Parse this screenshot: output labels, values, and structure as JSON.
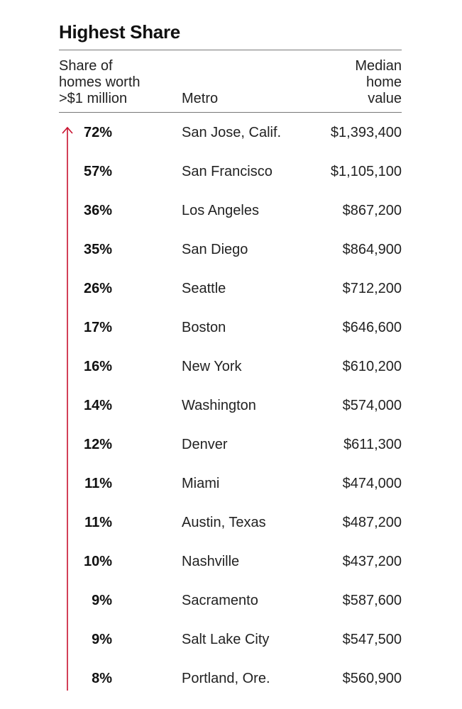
{
  "chart_data": {
    "type": "table",
    "title": "Highest Share",
    "columns": [
      {
        "key": "share",
        "lines": [
          "Share of",
          "homes worth",
          ">$1 million"
        ]
      },
      {
        "key": "metro",
        "lines": [
          "Metro"
        ]
      },
      {
        "key": "median",
        "lines": [
          "Median",
          "home",
          "value"
        ]
      }
    ],
    "rows": [
      {
        "share": "72%",
        "metro": "San Jose, Calif.",
        "median": "$1,393,400"
      },
      {
        "share": "57%",
        "metro": "San Francisco",
        "median": "$1,105,100"
      },
      {
        "share": "36%",
        "metro": "Los Angeles",
        "median": "$867,200"
      },
      {
        "share": "35%",
        "metro": "San Diego",
        "median": "$864,900"
      },
      {
        "share": "26%",
        "metro": "Seattle",
        "median": "$712,200"
      },
      {
        "share": "17%",
        "metro": "Boston",
        "median": "$646,600"
      },
      {
        "share": "16%",
        "metro": "New York",
        "median": "$610,200"
      },
      {
        "share": "14%",
        "metro": "Washington",
        "median": "$574,000"
      },
      {
        "share": "12%",
        "metro": "Denver",
        "median": "$611,300"
      },
      {
        "share": "11%",
        "metro": "Miami",
        "median": "$474,000"
      },
      {
        "share": "11%",
        "metro": "Austin, Texas",
        "median": "$487,200"
      },
      {
        "share": "10%",
        "metro": "Nashville",
        "median": "$437,200"
      },
      {
        "share": "9%",
        "metro": "Sacramento",
        "median": "$587,600"
      },
      {
        "share": "9%",
        "metro": "Salt Lake City",
        "median": "$547,500"
      },
      {
        "share": "8%",
        "metro": "Portland, Ore.",
        "median": "$560,900"
      }
    ],
    "arrow": {
      "direction": "up",
      "color": "#c8102e"
    }
  }
}
